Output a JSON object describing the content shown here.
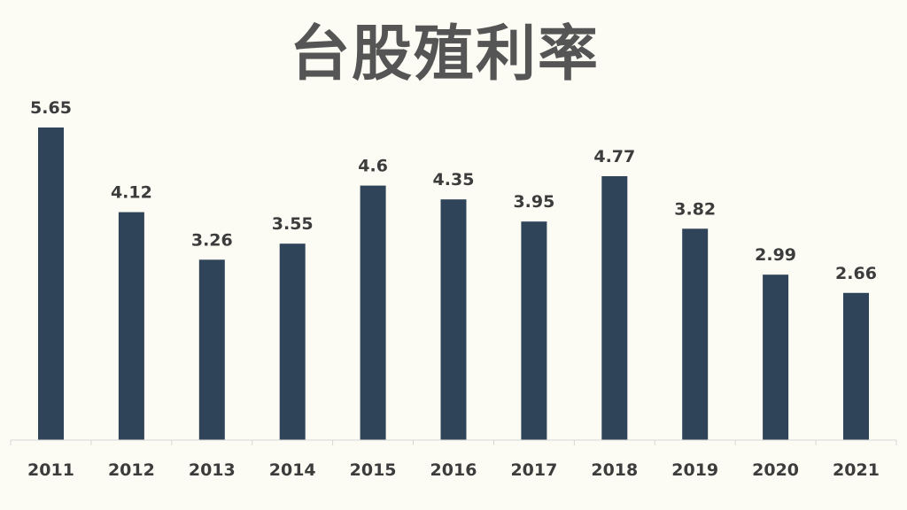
{
  "chart_data": {
    "type": "bar",
    "title": "台股殖利率",
    "xlabel": "",
    "ylabel": "",
    "categories": [
      "2011",
      "2012",
      "2013",
      "2014",
      "2015",
      "2016",
      "2017",
      "2018",
      "2019",
      "2020",
      "2021"
    ],
    "values": [
      5.65,
      4.12,
      3.26,
      3.55,
      4.6,
      4.35,
      3.95,
      4.77,
      3.82,
      2.99,
      2.66
    ],
    "value_labels": [
      "5.65",
      "4.12",
      "3.26",
      "3.55",
      "4.6",
      "4.35",
      "3.95",
      "4.77",
      "3.82",
      "2.99",
      "2.66"
    ],
    "ylim": [
      0,
      5.65
    ],
    "grid": false,
    "legend": "none",
    "bar_color": "#2f4459",
    "background_color": "#fcfcf4"
  }
}
